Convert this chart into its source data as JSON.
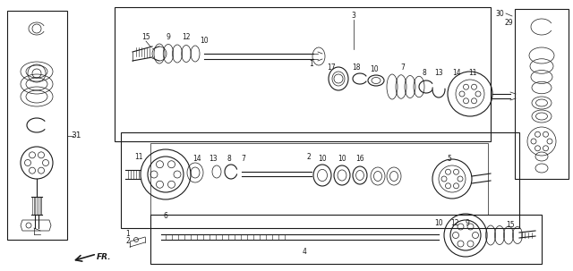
{
  "bg_color": "#ffffff",
  "line_color": "#1a1a1a",
  "fig_width": 6.4,
  "fig_height": 3.03,
  "dpi": 100,
  "lw_thin": 0.5,
  "lw_med": 0.8,
  "lw_thick": 1.2
}
